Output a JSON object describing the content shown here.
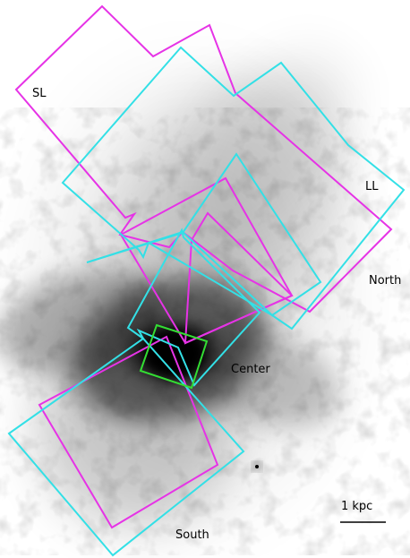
{
  "labels": {
    "sl": "SL",
    "ll": "LL",
    "north": "North",
    "center": "Center",
    "south": "South",
    "scale": "1 kpc"
  },
  "colors": {
    "sl_aperture": "#e633e6",
    "ll_aperture": "#33e0e6",
    "center_aperture": "#33dd33",
    "background": "#ffffff",
    "galaxy": "#000000"
  }
}
